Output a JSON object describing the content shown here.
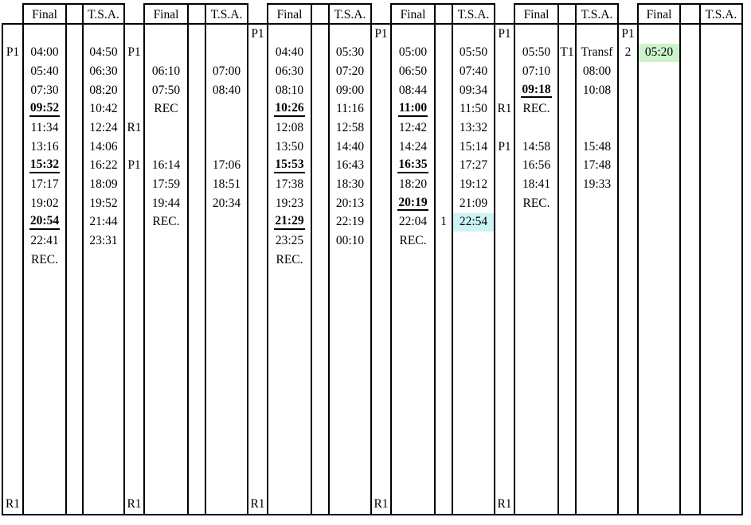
{
  "header": {
    "final_label": "Final",
    "tsa_label": "T.S.A."
  },
  "highlight_colors": {
    "cyan": "#ccf4f4",
    "green": "#ccf3cc"
  },
  "grid": {
    "num_rows": 26,
    "groups": [
      {
        "cells": [
          {
            "row": 2,
            "col": "marker",
            "text": "P1"
          },
          {
            "row": 2,
            "col": "final",
            "text": "04:00"
          },
          {
            "row": 2,
            "col": "tsa",
            "text": "04:50"
          },
          {
            "row": 3,
            "col": "final",
            "text": "05:40"
          },
          {
            "row": 3,
            "col": "tsa",
            "text": "06:30"
          },
          {
            "row": 4,
            "col": "final",
            "text": "07:30"
          },
          {
            "row": 4,
            "col": "tsa",
            "text": "08:20"
          },
          {
            "row": 5,
            "col": "final",
            "text": "09:52",
            "emph": true
          },
          {
            "row": 5,
            "col": "tsa",
            "text": "10:42"
          },
          {
            "row": 6,
            "col": "final",
            "text": "11:34"
          },
          {
            "row": 6,
            "col": "tsa",
            "text": "12:24"
          },
          {
            "row": 7,
            "col": "final",
            "text": "13:16"
          },
          {
            "row": 7,
            "col": "tsa",
            "text": "14:06"
          },
          {
            "row": 8,
            "col": "final",
            "text": "15:32",
            "emph": true
          },
          {
            "row": 8,
            "col": "tsa",
            "text": "16:22"
          },
          {
            "row": 9,
            "col": "final",
            "text": "17:17"
          },
          {
            "row": 9,
            "col": "tsa",
            "text": "18:09"
          },
          {
            "row": 10,
            "col": "final",
            "text": "19:02"
          },
          {
            "row": 10,
            "col": "tsa",
            "text": "19:52"
          },
          {
            "row": 11,
            "col": "final",
            "text": "20:54",
            "emph": true
          },
          {
            "row": 11,
            "col": "tsa",
            "text": "21:44"
          },
          {
            "row": 12,
            "col": "final",
            "text": "22:41"
          },
          {
            "row": 12,
            "col": "tsa",
            "text": "23:31"
          },
          {
            "row": 13,
            "col": "final",
            "text": "REC."
          },
          {
            "row": 26,
            "col": "marker",
            "text": "R1"
          }
        ]
      },
      {
        "cells": [
          {
            "row": 2,
            "col": "marker",
            "text": "P1"
          },
          {
            "row": 3,
            "col": "final",
            "text": "06:10"
          },
          {
            "row": 3,
            "col": "tsa",
            "text": "07:00"
          },
          {
            "row": 4,
            "col": "final",
            "text": "07:50"
          },
          {
            "row": 4,
            "col": "tsa",
            "text": "08:40"
          },
          {
            "row": 5,
            "col": "final",
            "text": "REC"
          },
          {
            "row": 6,
            "col": "marker",
            "text": "R1"
          },
          {
            "row": 8,
            "col": "marker",
            "text": "P1"
          },
          {
            "row": 8,
            "col": "final",
            "text": "16:14"
          },
          {
            "row": 8,
            "col": "tsa",
            "text": "17:06"
          },
          {
            "row": 9,
            "col": "final",
            "text": "17:59"
          },
          {
            "row": 9,
            "col": "tsa",
            "text": "18:51"
          },
          {
            "row": 10,
            "col": "final",
            "text": "19:44"
          },
          {
            "row": 10,
            "col": "tsa",
            "text": "20:34"
          },
          {
            "row": 11,
            "col": "final",
            "text": "REC."
          },
          {
            "row": 26,
            "col": "marker",
            "text": "R1"
          }
        ]
      },
      {
        "cells": [
          {
            "row": 1,
            "col": "marker",
            "text": "P1"
          },
          {
            "row": 2,
            "col": "final",
            "text": "04:40"
          },
          {
            "row": 2,
            "col": "tsa",
            "text": "05:30"
          },
          {
            "row": 3,
            "col": "final",
            "text": "06:30"
          },
          {
            "row": 3,
            "col": "tsa",
            "text": "07:20"
          },
          {
            "row": 4,
            "col": "final",
            "text": "08:10"
          },
          {
            "row": 4,
            "col": "tsa",
            "text": "09:00"
          },
          {
            "row": 5,
            "col": "final",
            "text": "10:26",
            "emph": true
          },
          {
            "row": 5,
            "col": "tsa",
            "text": "11:16"
          },
          {
            "row": 6,
            "col": "final",
            "text": "12:08"
          },
          {
            "row": 6,
            "col": "tsa",
            "text": "12:58"
          },
          {
            "row": 7,
            "col": "final",
            "text": "13:50"
          },
          {
            "row": 7,
            "col": "tsa",
            "text": "14:40"
          },
          {
            "row": 8,
            "col": "final",
            "text": "15:53",
            "emph": true
          },
          {
            "row": 8,
            "col": "tsa",
            "text": "16:43"
          },
          {
            "row": 9,
            "col": "final",
            "text": "17:38"
          },
          {
            "row": 9,
            "col": "tsa",
            "text": "18:30"
          },
          {
            "row": 10,
            "col": "final",
            "text": "19:23"
          },
          {
            "row": 10,
            "col": "tsa",
            "text": "20:13"
          },
          {
            "row": 11,
            "col": "final",
            "text": "21:29",
            "emph": true
          },
          {
            "row": 11,
            "col": "tsa",
            "text": "22:19"
          },
          {
            "row": 12,
            "col": "final",
            "text": "23:25"
          },
          {
            "row": 12,
            "col": "tsa",
            "text": "00:10"
          },
          {
            "row": 13,
            "col": "final",
            "text": "REC."
          },
          {
            "row": 26,
            "col": "marker",
            "text": "R1"
          }
        ]
      },
      {
        "cells": [
          {
            "row": 1,
            "col": "marker",
            "text": "P1"
          },
          {
            "row": 2,
            "col": "final",
            "text": "05:00"
          },
          {
            "row": 2,
            "col": "tsa",
            "text": "05:50"
          },
          {
            "row": 3,
            "col": "final",
            "text": "06:50"
          },
          {
            "row": 3,
            "col": "tsa",
            "text": "07:40"
          },
          {
            "row": 4,
            "col": "final",
            "text": "08:44"
          },
          {
            "row": 4,
            "col": "tsa",
            "text": "09:34"
          },
          {
            "row": 5,
            "col": "final",
            "text": "11:00",
            "emph": true
          },
          {
            "row": 5,
            "col": "tsa",
            "text": "11:50"
          },
          {
            "row": 6,
            "col": "final",
            "text": "12:42"
          },
          {
            "row": 6,
            "col": "tsa",
            "text": "13:32"
          },
          {
            "row": 7,
            "col": "final",
            "text": "14:24"
          },
          {
            "row": 7,
            "col": "tsa",
            "text": "15:14"
          },
          {
            "row": 8,
            "col": "final",
            "text": "16:35",
            "emph": true
          },
          {
            "row": 8,
            "col": "tsa",
            "text": "17:27"
          },
          {
            "row": 9,
            "col": "final",
            "text": "18:20"
          },
          {
            "row": 9,
            "col": "tsa",
            "text": "19:12"
          },
          {
            "row": 10,
            "col": "final",
            "text": "20:19",
            "emph": true
          },
          {
            "row": 10,
            "col": "tsa",
            "text": "21:09"
          },
          {
            "row": 11,
            "col": "final",
            "text": "22:04"
          },
          {
            "row": 11,
            "col": "gap",
            "text": "1"
          },
          {
            "row": 11,
            "col": "tsa",
            "text": "22:54",
            "highlight": "cyan"
          },
          {
            "row": 12,
            "col": "final",
            "text": "REC."
          },
          {
            "row": 26,
            "col": "marker",
            "text": "R1"
          }
        ]
      },
      {
        "cells": [
          {
            "row": 1,
            "col": "marker",
            "text": "P1"
          },
          {
            "row": 2,
            "col": "final",
            "text": "05:50"
          },
          {
            "row": 2,
            "col": "gap",
            "text": "T1"
          },
          {
            "row": 2,
            "col": "tsa",
            "text": "Transf"
          },
          {
            "row": 3,
            "col": "final",
            "text": "07:10"
          },
          {
            "row": 3,
            "col": "tsa",
            "text": "08:00"
          },
          {
            "row": 4,
            "col": "final",
            "text": "09:18",
            "emph": true
          },
          {
            "row": 4,
            "col": "tsa",
            "text": "10:08"
          },
          {
            "row": 5,
            "col": "marker",
            "text": "R1"
          },
          {
            "row": 5,
            "col": "final",
            "text": "REC."
          },
          {
            "row": 7,
            "col": "marker",
            "text": "P1"
          },
          {
            "row": 7,
            "col": "final",
            "text": "14:58"
          },
          {
            "row": 7,
            "col": "tsa",
            "text": "15:48"
          },
          {
            "row": 8,
            "col": "final",
            "text": "16:56"
          },
          {
            "row": 8,
            "col": "tsa",
            "text": "17:48"
          },
          {
            "row": 9,
            "col": "final",
            "text": "18:41"
          },
          {
            "row": 9,
            "col": "tsa",
            "text": "19:33"
          },
          {
            "row": 10,
            "col": "final",
            "text": "REC."
          },
          {
            "row": 26,
            "col": "marker",
            "text": "R1"
          }
        ]
      },
      {
        "cells": [
          {
            "row": 1,
            "col": "marker",
            "text": "P1"
          },
          {
            "row": 2,
            "col": "marker",
            "text": "2"
          },
          {
            "row": 2,
            "col": "final",
            "text": "05:20",
            "highlight": "green"
          }
        ]
      }
    ]
  }
}
